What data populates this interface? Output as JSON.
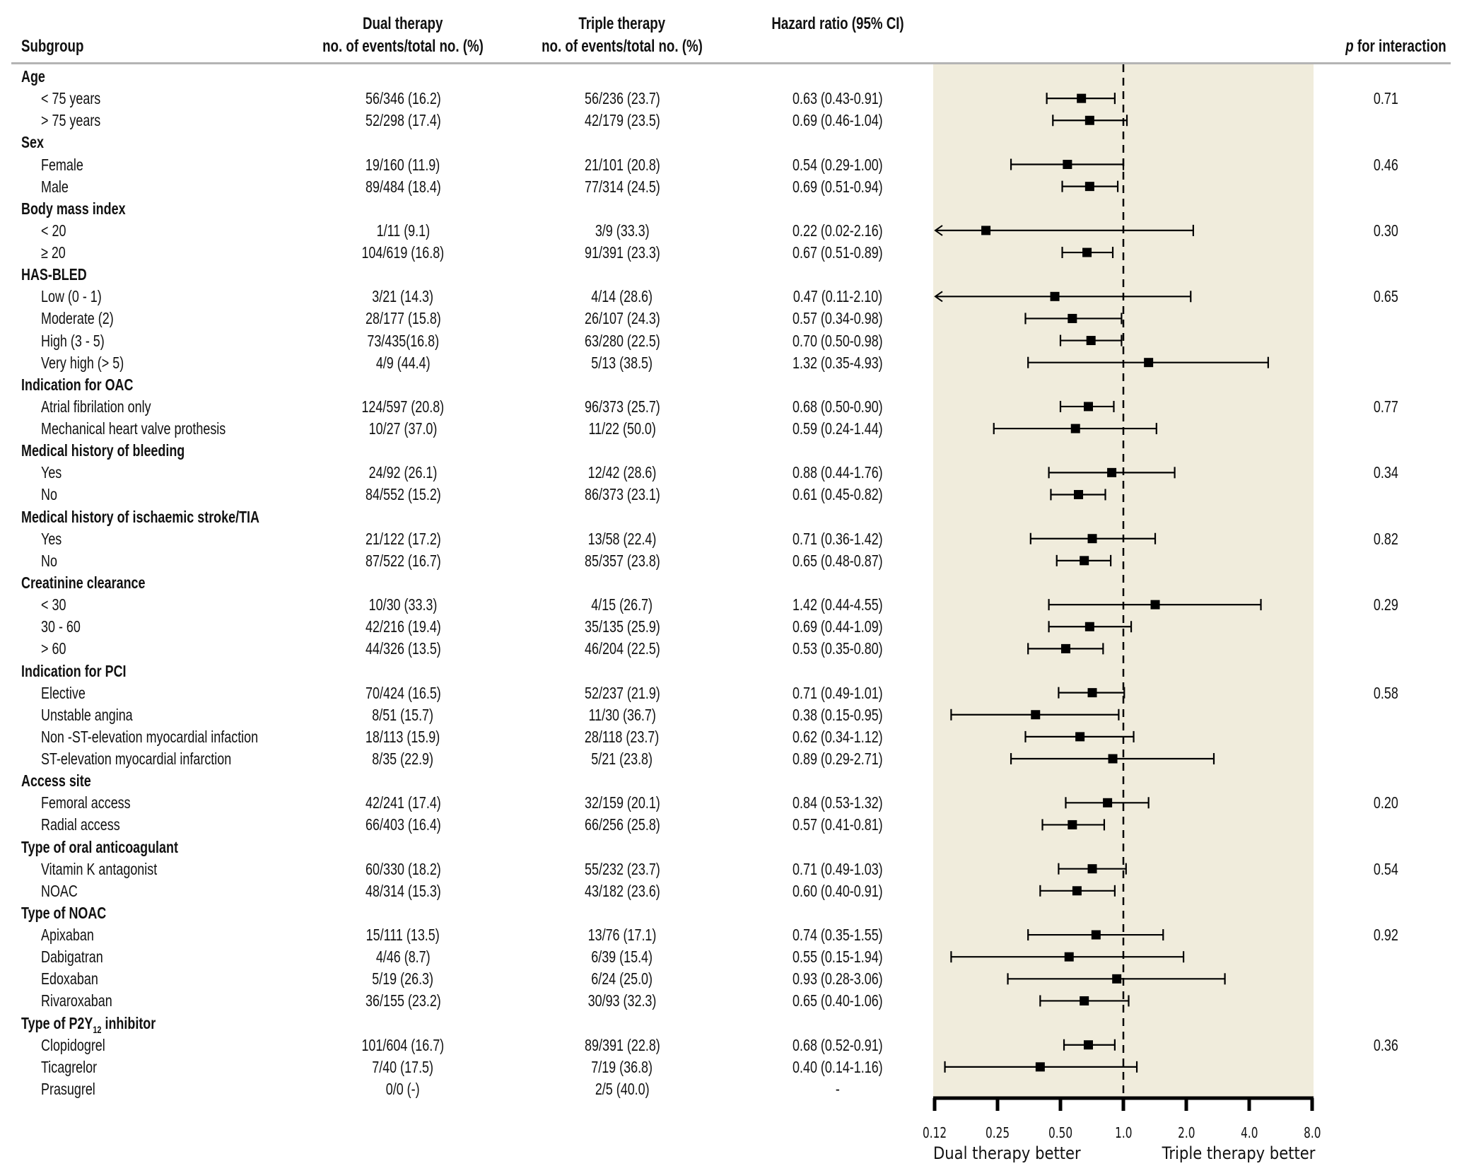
{
  "headers": {
    "subgroup": "Subgroup",
    "dual_line1": "Dual therapy",
    "dual_line2": "no. of events/total no. (%)",
    "triple_line1": "Triple therapy",
    "triple_line2": "no. of events/total no. (%)",
    "hr": "Hazard ratio (95% CI)",
    "p_italic": "p",
    "p_rest": " for interaction"
  },
  "colors": {
    "panel": "#f0ecdc",
    "marker": "#000000",
    "rule": "#b4b4b4"
  },
  "chart_data": {
    "type": "forest",
    "x_scale": "log2",
    "xlim": [
      0.125,
      8.0
    ],
    "reference_line": 1.0,
    "x_ticks": [
      0.125,
      0.25,
      0.5,
      1.0,
      2.0,
      4.0,
      8.0
    ],
    "x_tick_labels": [
      "0.12",
      "0.25",
      "0.50",
      "1.0",
      "2.0",
      "4.0",
      "8.0"
    ],
    "left_label": "Dual therapy better",
    "right_label": "Triple therapy better",
    "groups": [
      {
        "name": "Age",
        "p": "0.71",
        "rows": [
          {
            "label": "< 75 years",
            "dual": "56/346 (16.2)",
            "triple": "56/236 (23.7)",
            "hr_text": "0.63 (0.43-0.91)",
            "hr": 0.63,
            "lo": 0.43,
            "hi": 0.91
          },
          {
            "label": "> 75 years",
            "dual": "52/298 (17.4)",
            "triple": "42/179 (23.5)",
            "hr_text": "0.69 (0.46-1.04)",
            "hr": 0.69,
            "lo": 0.46,
            "hi": 1.04
          }
        ]
      },
      {
        "name": "Sex",
        "p": "0.46",
        "rows": [
          {
            "label": "Female",
            "dual": "19/160 (11.9)",
            "triple": "21/101 (20.8)",
            "hr_text": "0.54 (0.29-1.00)",
            "hr": 0.54,
            "lo": 0.29,
            "hi": 1.0
          },
          {
            "label": "Male",
            "dual": "89/484 (18.4)",
            "triple": "77/314 (24.5)",
            "hr_text": "0.69 (0.51-0.94)",
            "hr": 0.69,
            "lo": 0.51,
            "hi": 0.94
          }
        ]
      },
      {
        "name": "Body mass index",
        "p": "0.30",
        "rows": [
          {
            "label": "< 20",
            "dual": "1/11 (9.1)",
            "triple": "3/9 (33.3)",
            "hr_text": "0.22 (0.02-2.16)",
            "hr": 0.22,
            "lo": 0.02,
            "hi": 2.16
          },
          {
            "label": "≥ 20",
            "dual": "104/619 (16.8)",
            "triple": "91/391 (23.3)",
            "hr_text": "0.67 (0.51-0.89)",
            "hr": 0.67,
            "lo": 0.51,
            "hi": 0.89
          }
        ]
      },
      {
        "name": "HAS-BLED",
        "p": "0.65",
        "rows": [
          {
            "label": "Low (0 - 1)",
            "dual": "3/21 (14.3)",
            "triple": "4/14 (28.6)",
            "hr_text": "0.47 (0.11-2.10)",
            "hr": 0.47,
            "lo": 0.11,
            "hi": 2.1
          },
          {
            "label": "Moderate (2)",
            "dual": "28/177 (15.8)",
            "triple": "26/107 (24.3)",
            "hr_text": "0.57 (0.34-0.98)",
            "hr": 0.57,
            "lo": 0.34,
            "hi": 0.98
          },
          {
            "label": "High (3 - 5)",
            "dual": "73/435(16.8)",
            "triple": "63/280 (22.5)",
            "hr_text": "0.70 (0.50-0.98)",
            "hr": 0.7,
            "lo": 0.5,
            "hi": 0.98
          },
          {
            "label": "Very high (> 5)",
            "dual": "4/9 (44.4)",
            "triple": "5/13 (38.5)",
            "hr_text": "1.32 (0.35-4.93)",
            "hr": 1.32,
            "lo": 0.35,
            "hi": 4.93
          }
        ]
      },
      {
        "name": "Indication for OAC",
        "p": "0.77",
        "rows": [
          {
            "label": "Atrial fibrilation only",
            "dual": "124/597 (20.8)",
            "triple": "96/373 (25.7)",
            "hr_text": "0.68 (0.50-0.90)",
            "hr": 0.68,
            "lo": 0.5,
            "hi": 0.9
          },
          {
            "label": "Mechanical heart valve prothesis",
            "dual": "10/27 (37.0)",
            "triple": "11/22 (50.0)",
            "hr_text": "0.59 (0.24-1.44)",
            "hr": 0.59,
            "lo": 0.24,
            "hi": 1.44
          }
        ]
      },
      {
        "name": "Medical history of bleeding",
        "p": "0.34",
        "rows": [
          {
            "label": "Yes",
            "dual": "24/92 (26.1)",
            "triple": "12/42 (28.6)",
            "hr_text": "0.88 (0.44-1.76)",
            "hr": 0.88,
            "lo": 0.44,
            "hi": 1.76
          },
          {
            "label": "No",
            "dual": "84/552 (15.2)",
            "triple": "86/373 (23.1)",
            "hr_text": "0.61 (0.45-0.82)",
            "hr": 0.61,
            "lo": 0.45,
            "hi": 0.82
          }
        ]
      },
      {
        "name": "Medical history of ischaemic stroke/TIA",
        "p": "0.82",
        "rows": [
          {
            "label": "Yes",
            "dual": "21/122 (17.2)",
            "triple": "13/58 (22.4)",
            "hr_text": "0.71 (0.36-1.42)",
            "hr": 0.71,
            "lo": 0.36,
            "hi": 1.42
          },
          {
            "label": "No",
            "dual": "87/522 (16.7)",
            "triple": "85/357 (23.8)",
            "hr_text": "0.65 (0.48-0.87)",
            "hr": 0.65,
            "lo": 0.48,
            "hi": 0.87
          }
        ]
      },
      {
        "name": "Creatinine clearance",
        "p": "0.29",
        "rows": [
          {
            "label": "< 30",
            "dual": "10/30 (33.3)",
            "triple": "4/15 (26.7)",
            "hr_text": "1.42 (0.44-4.55)",
            "hr": 1.42,
            "lo": 0.44,
            "hi": 4.55
          },
          {
            "label": "30 - 60",
            "dual": "42/216 (19.4)",
            "triple": "35/135 (25.9)",
            "hr_text": "0.69 (0.44-1.09)",
            "hr": 0.69,
            "lo": 0.44,
            "hi": 1.09
          },
          {
            "label": "> 60",
            "dual": "44/326 (13.5)",
            "triple": "46/204 (22.5)",
            "hr_text": "0.53 (0.35-0.80)",
            "hr": 0.53,
            "lo": 0.35,
            "hi": 0.8
          }
        ]
      },
      {
        "name": "Indication for PCI",
        "p": "0.58",
        "rows": [
          {
            "label": "Elective",
            "dual": "70/424 (16.5)",
            "triple": "52/237 (21.9)",
            "hr_text": "0.71 (0.49-1.01)",
            "hr": 0.71,
            "lo": 0.49,
            "hi": 1.01
          },
          {
            "label": "Unstable angina",
            "dual": "8/51 (15.7)",
            "triple": "11/30 (36.7)",
            "hr_text": "0.38 (0.15-0.95)",
            "hr": 0.38,
            "lo": 0.15,
            "hi": 0.95
          },
          {
            "label": "Non -ST-elevation myocardial infaction",
            "dual": "18/113 (15.9)",
            "triple": "28/118 (23.7)",
            "hr_text": "0.62 (0.34-1.12)",
            "hr": 0.62,
            "lo": 0.34,
            "hi": 1.12
          },
          {
            "label": "ST-elevation myocardial infarction",
            "dual": "8/35 (22.9)",
            "triple": "5/21 (23.8)",
            "hr_text": "0.89 (0.29-2.71)",
            "hr": 0.89,
            "lo": 0.29,
            "hi": 2.71
          }
        ]
      },
      {
        "name": "Access site",
        "p": "0.20",
        "rows": [
          {
            "label": "Femoral access",
            "dual": "42/241 (17.4)",
            "triple": "32/159 (20.1)",
            "hr_text": "0.84 (0.53-1.32)",
            "hr": 0.84,
            "lo": 0.53,
            "hi": 1.32
          },
          {
            "label": "Radial access",
            "dual": "66/403 (16.4)",
            "triple": "66/256 (25.8)",
            "hr_text": "0.57 (0.41-0.81)",
            "hr": 0.57,
            "lo": 0.41,
            "hi": 0.81
          }
        ]
      },
      {
        "name": "Type of oral anticoagulant",
        "p": "0.54",
        "rows": [
          {
            "label": "Vitamin K antagonist",
            "dual": "60/330 (18.2)",
            "triple": "55/232 (23.7)",
            "hr_text": "0.71 (0.49-1.03)",
            "hr": 0.71,
            "lo": 0.49,
            "hi": 1.03
          },
          {
            "label": "NOAC",
            "dual": "48/314 (15.3)",
            "triple": "43/182 (23.6)",
            "hr_text": "0.60 (0.40-0.91)",
            "hr": 0.6,
            "lo": 0.4,
            "hi": 0.91
          }
        ]
      },
      {
        "name": "Type of NOAC",
        "p": "0.92",
        "rows": [
          {
            "label": "Apixaban",
            "dual": "15/111 (13.5)",
            "triple": "13/76 (17.1)",
            "hr_text": "0.74 (0.35-1.55)",
            "hr": 0.74,
            "lo": 0.35,
            "hi": 1.55
          },
          {
            "label": "Dabigatran",
            "dual": "4/46 (8.7)",
            "triple": "6/39 (15.4)",
            "hr_text": "0.55 (0.15-1.94)",
            "hr": 0.55,
            "lo": 0.15,
            "hi": 1.94
          },
          {
            "label": "Edoxaban",
            "dual": "5/19 (26.3)",
            "triple": "6/24 (25.0)",
            "hr_text": "0.93 (0.28-3.06)",
            "hr": 0.93,
            "lo": 0.28,
            "hi": 3.06
          },
          {
            "label": "Rivaroxaban",
            "dual": "36/155 (23.2)",
            "triple": "30/93 (32.3)",
            "hr_text": "0.65 (0.40-1.06)",
            "hr": 0.65,
            "lo": 0.4,
            "hi": 1.06
          }
        ]
      },
      {
        "name": "Type of P2Y",
        "name_sub": "12",
        "name_tail": " inhibitor",
        "p": "0.36",
        "rows": [
          {
            "label": "Clopidogrel",
            "dual": "101/604 (16.7)",
            "triple": "89/391 (22.8)",
            "hr_text": "0.68 (0.52-0.91)",
            "hr": 0.68,
            "lo": 0.52,
            "hi": 0.91
          },
          {
            "label": "Ticagrelor",
            "dual": "7/40 (17.5)",
            "triple": "7/19 (36.8)",
            "hr_text": "0.40 (0.14-1.16)",
            "hr": 0.4,
            "lo": 0.14,
            "hi": 1.16
          },
          {
            "label": "Prasugrel",
            "dual": "0/0 (-)",
            "triple": "2/5 (40.0)",
            "hr_text": "-",
            "hr": null,
            "lo": null,
            "hi": null
          }
        ]
      }
    ]
  }
}
